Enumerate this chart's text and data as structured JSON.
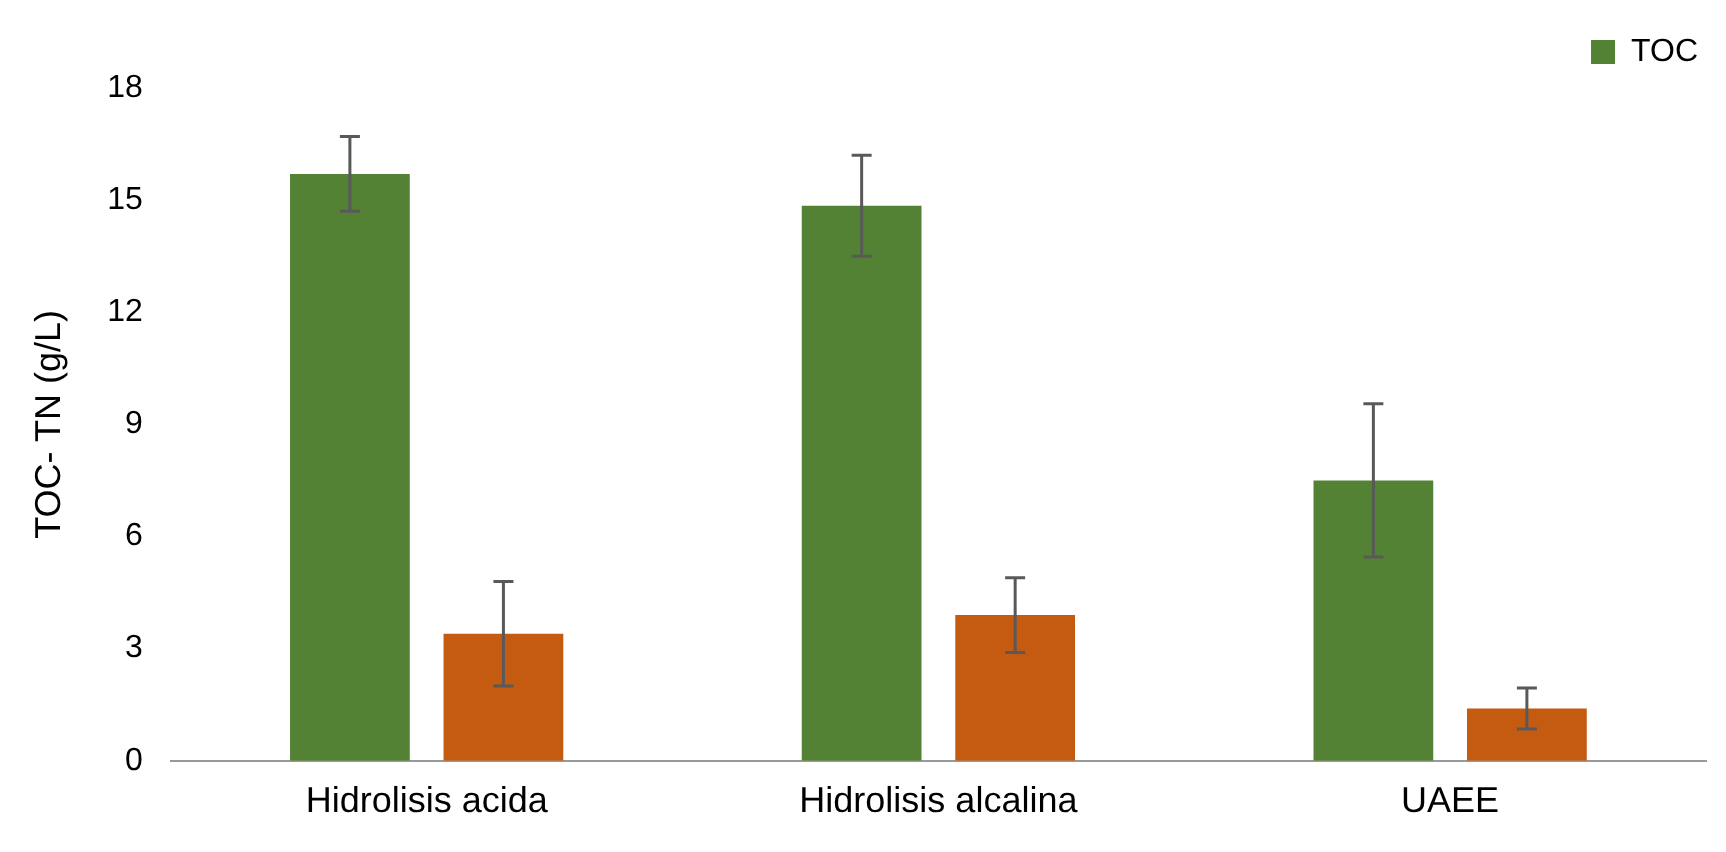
{
  "chart_data": {
    "type": "bar",
    "ylabel": "TOC- TN (g/L)",
    "categories": [
      "Hidrolisis acida",
      "Hidrolisis alcalina",
      "UAEE"
    ],
    "series": [
      {
        "name": "TOC",
        "color": "#548235",
        "values": [
          15.7,
          14.85,
          7.5
        ],
        "errors": [
          1.0,
          1.35,
          2.05
        ]
      },
      {
        "color": "#c55a11",
        "values": [
          3.4,
          3.9,
          1.4
        ],
        "errors": [
          1.4,
          1.0,
          0.55
        ]
      }
    ],
    "ylim": [
      0,
      18
    ],
    "yticks": [
      0,
      3,
      6,
      9,
      12,
      15,
      18
    ],
    "grid": false,
    "legend": "top right"
  }
}
